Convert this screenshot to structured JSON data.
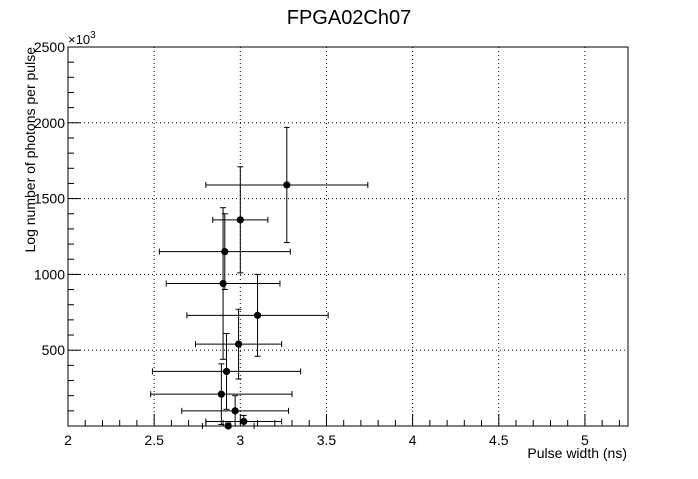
{
  "chart_data": {
    "type": "scatter",
    "title": "FPGA02Ch07",
    "xlabel": "Pulse width (ns)",
    "ylabel": "Log number of photons per pulse",
    "y_exponent": "×10",
    "y_exponent_power": "3",
    "xlim": [
      2.0,
      5.25
    ],
    "ylim": [
      0,
      2500
    ],
    "x_ticks": [
      2,
      2.5,
      3,
      3.5,
      4,
      4.5,
      5
    ],
    "x_tick_labels": [
      "2",
      "2.5",
      "3",
      "3.5",
      "4",
      "4.5",
      "5"
    ],
    "y_ticks": [
      500,
      1000,
      1500,
      2000,
      2500
    ],
    "y_tick_labels": [
      "500",
      "1000",
      "1500",
      "2000",
      "2500"
    ],
    "grid": true,
    "points": [
      {
        "x": 2.93,
        "y": 0,
        "xerr": 0.15,
        "yerr": 20
      },
      {
        "x": 3.02,
        "y": 30,
        "xerr": 0.22,
        "yerr": 40
      },
      {
        "x": 2.97,
        "y": 100,
        "xerr": 0.31,
        "yerr": 100
      },
      {
        "x": 2.89,
        "y": 210,
        "xerr": 0.41,
        "yerr": 200
      },
      {
        "x": 2.92,
        "y": 360,
        "xerr": 0.43,
        "yerr": 250
      },
      {
        "x": 2.99,
        "y": 540,
        "xerr": 0.25,
        "yerr": 230
      },
      {
        "x": 3.1,
        "y": 730,
        "xerr": 0.41,
        "yerr": 270
      },
      {
        "x": 2.9,
        "y": 940,
        "xerr": 0.33,
        "yerr": 500
      },
      {
        "x": 2.91,
        "y": 1150,
        "xerr": 0.38,
        "yerr": 250
      },
      {
        "x": 3.0,
        "y": 1360,
        "xerr": 0.16,
        "yerr": 350
      },
      {
        "x": 3.27,
        "y": 1590,
        "xerr": 0.47,
        "yerr": 380
      }
    ]
  }
}
